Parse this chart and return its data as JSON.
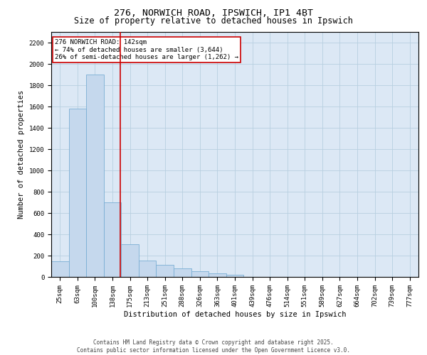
{
  "title_line1": "276, NORWICH ROAD, IPSWICH, IP1 4BT",
  "title_line2": "Size of property relative to detached houses in Ipswich",
  "xlabel": "Distribution of detached houses by size in Ipswich",
  "ylabel": "Number of detached properties",
  "categories": [
    "25sqm",
    "63sqm",
    "100sqm",
    "138sqm",
    "175sqm",
    "213sqm",
    "251sqm",
    "288sqm",
    "326sqm",
    "363sqm",
    "401sqm",
    "439sqm",
    "476sqm",
    "514sqm",
    "551sqm",
    "589sqm",
    "627sqm",
    "664sqm",
    "702sqm",
    "739sqm",
    "777sqm"
  ],
  "values": [
    150,
    1580,
    1900,
    700,
    310,
    155,
    115,
    80,
    55,
    35,
    20,
    0,
    0,
    0,
    0,
    0,
    0,
    0,
    0,
    0,
    0
  ],
  "bar_color": "#c5d8ed",
  "bar_edge_color": "#7aafd4",
  "grid_color": "#b8cfe0",
  "background_color": "#dce8f5",
  "annotation_box_color": "#cc0000",
  "annotation_line1": "276 NORWICH ROAD: 142sqm",
  "annotation_line2": "← 74% of detached houses are smaller (3,644)",
  "annotation_line3": "26% of semi-detached houses are larger (1,262) →",
  "property_line_x": 3.45,
  "ylim_max": 2300,
  "yticks": [
    0,
    200,
    400,
    600,
    800,
    1000,
    1200,
    1400,
    1600,
    1800,
    2000,
    2200
  ],
  "footer_line1": "Contains HM Land Registry data © Crown copyright and database right 2025.",
  "footer_line2": "Contains public sector information licensed under the Open Government Licence v3.0.",
  "title_fontsize": 9.5,
  "subtitle_fontsize": 8.5,
  "axis_label_fontsize": 7.5,
  "tick_fontsize": 6.5,
  "annotation_fontsize": 6.5,
  "footer_fontsize": 5.5
}
